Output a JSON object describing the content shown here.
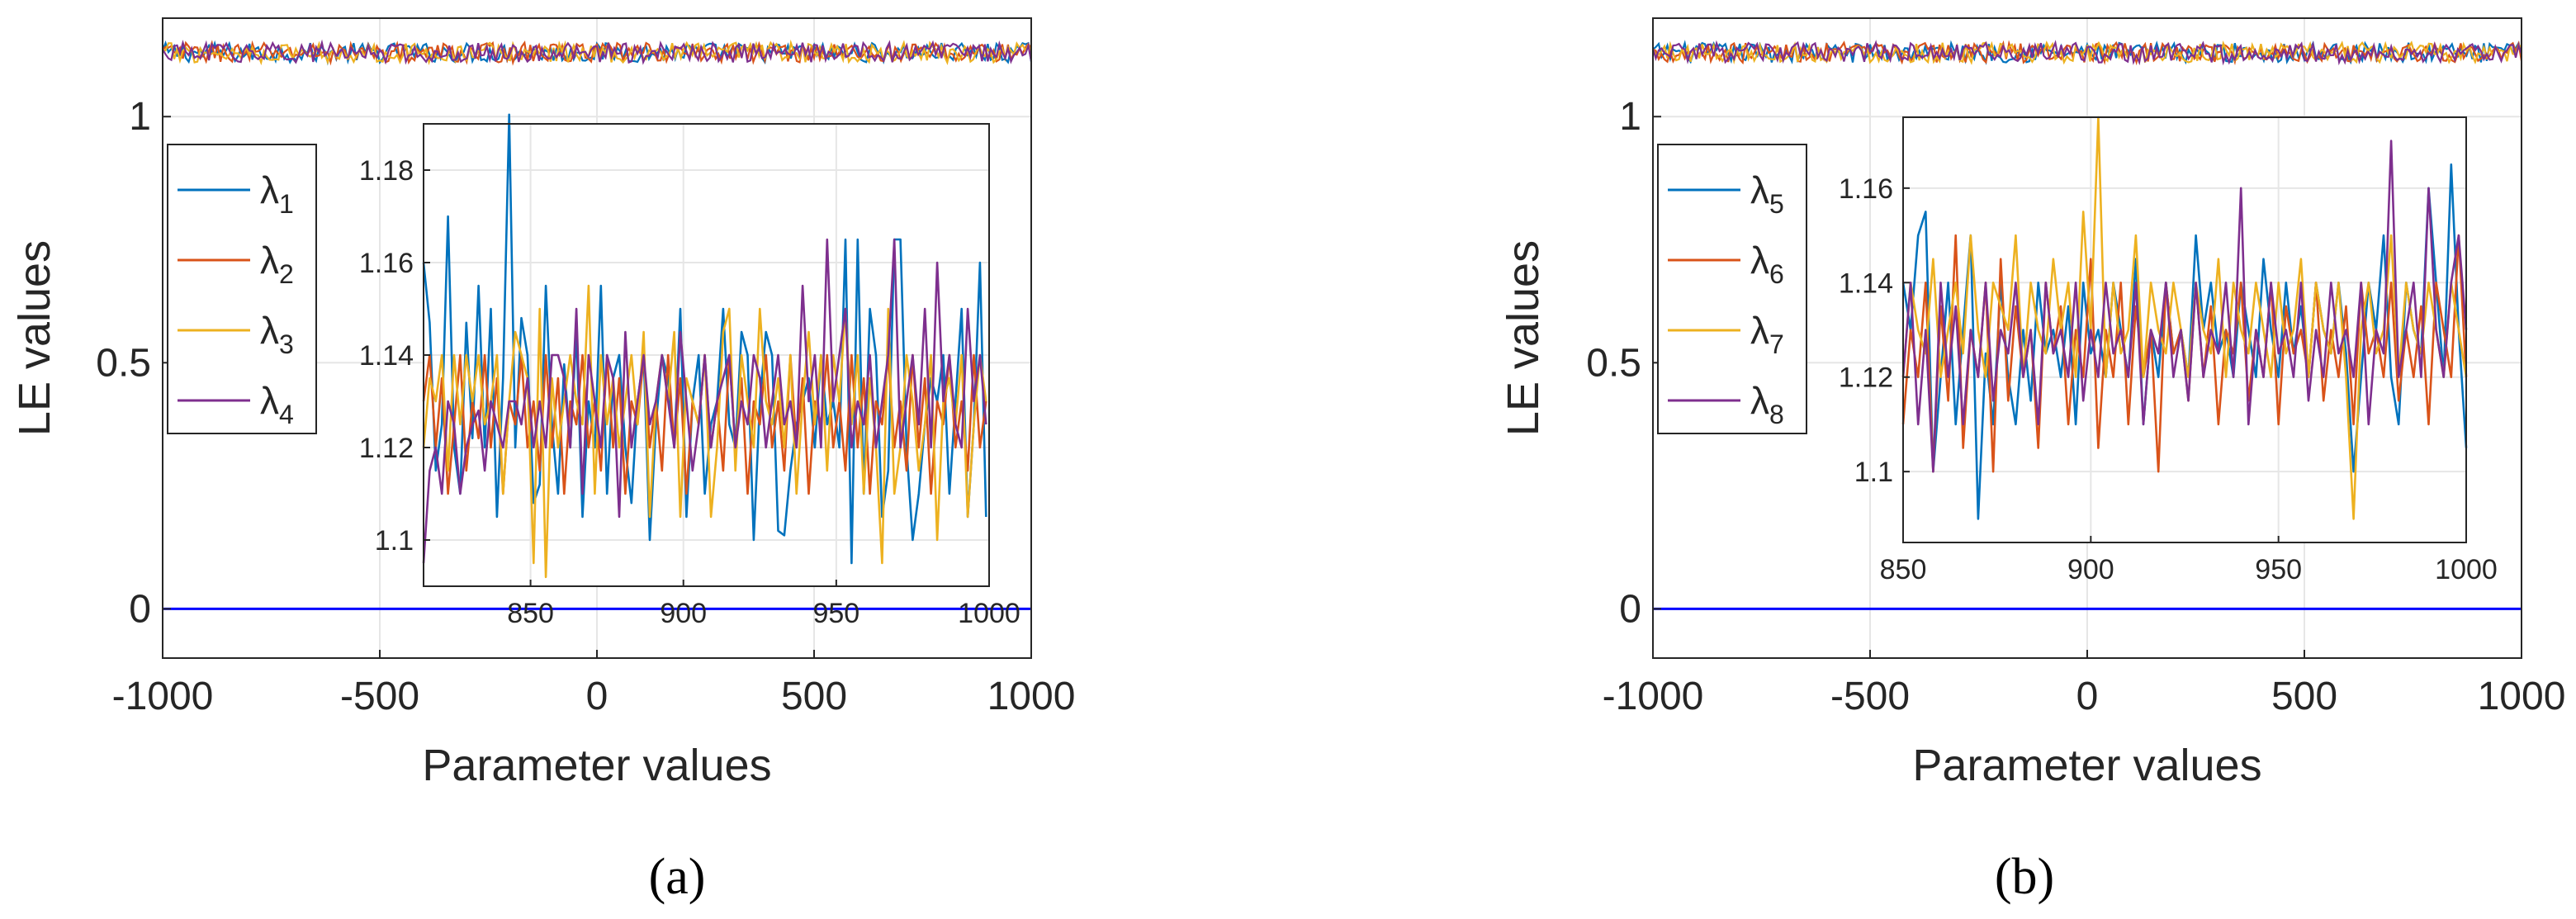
{
  "figure": {
    "panels": [
      "(a)",
      "(b)"
    ]
  },
  "colors": {
    "s1": "#0072BD",
    "s2": "#D95319",
    "s3": "#EDB120",
    "s4": "#7E2F8E",
    "zero_line": "#0000FF",
    "grid": "#e6e6e6",
    "axis": "#262626"
  },
  "chart_data": [
    {
      "type": "line",
      "panel": "(a)",
      "title": "",
      "xlabel": "Parameter values",
      "ylabel": "LE values",
      "xlim": [
        -1000,
        1000
      ],
      "ylim": [
        -0.1,
        1.2
      ],
      "xticks": [
        -1000,
        -500,
        0,
        500,
        1000
      ],
      "yticks": [
        0,
        0.5,
        1
      ],
      "grid": true,
      "legend_position": "left",
      "series": [
        {
          "name": "λ1",
          "base": "λ",
          "sub": "1",
          "color": "#0072BD",
          "level": 1.13,
          "noise": 0.02
        },
        {
          "name": "λ2",
          "base": "λ",
          "sub": "2",
          "color": "#D95319",
          "level": 1.13,
          "noise": 0.02
        },
        {
          "name": "λ3",
          "base": "λ",
          "sub": "3",
          "color": "#EDB120",
          "level": 1.13,
          "noise": 0.02
        },
        {
          "name": "λ4",
          "base": "λ",
          "sub": "4",
          "color": "#7E2F8E",
          "level": 1.13,
          "noise": 0.02
        }
      ],
      "reference_line": {
        "y": 0,
        "color": "#0000FF"
      },
      "inset": {
        "xlim": [
          815,
          1000
        ],
        "ylim": [
          1.09,
          1.19
        ],
        "xticks": [
          850,
          900,
          950,
          1000
        ],
        "yticks": [
          1.1,
          1.12,
          1.14,
          1.16,
          1.18
        ],
        "x_start": 815,
        "x_step": 2,
        "series": [
          {
            "name": "λ1",
            "color": "#0072BD",
            "values": [
              1.16,
              1.147,
              1.115,
              1.125,
              1.17,
              1.12,
              1.11,
              1.147,
              1.122,
              1.155,
              1.12,
              1.15,
              1.105,
              1.135,
              1.192,
              1.12,
              1.148,
              1.14,
              1.108,
              1.112,
              1.155,
              1.125,
              1.11,
              1.138,
              1.12,
              1.145,
              1.105,
              1.13,
              1.12,
              1.155,
              1.11,
              1.135,
              1.14,
              1.12,
              1.108,
              1.13,
              1.14,
              1.1,
              1.125,
              1.14,
              1.135,
              1.12,
              1.15,
              1.105,
              1.13,
              1.14,
              1.11,
              1.125,
              1.13,
              1.15,
              1.125,
              1.12,
              1.145,
              1.14,
              1.1,
              1.13,
              1.145,
              1.14,
              1.102,
              1.101,
              1.115,
              1.125,
              1.13,
              1.135,
              1.12,
              1.14,
              1.125,
              1.13,
              1.12,
              1.165,
              1.095,
              1.165,
              1.11,
              1.15,
              1.14,
              1.105,
              1.115,
              1.165,
              1.165,
              1.12,
              1.1,
              1.11,
              1.125,
              1.135,
              1.13,
              1.14,
              1.11,
              1.13,
              1.15,
              1.105,
              1.125,
              1.16,
              1.105
            ]
          },
          {
            "name": "λ2",
            "color": "#D95319",
            "values": [
              1.13,
              1.14,
              1.12,
              1.135,
              1.11,
              1.125,
              1.14,
              1.115,
              1.13,
              1.122,
              1.14,
              1.12,
              1.135,
              1.11,
              1.13,
              1.125,
              1.14,
              1.12,
              1.13,
              1.115,
              1.14,
              1.12,
              1.135,
              1.11,
              1.13,
              1.125,
              1.14,
              1.12,
              1.13,
              1.115,
              1.14,
              1.12,
              1.135,
              1.11,
              1.13,
              1.125,
              1.14,
              1.12,
              1.13,
              1.115,
              1.14,
              1.12,
              1.135,
              1.11,
              1.13,
              1.125,
              1.14,
              1.12,
              1.13,
              1.115,
              1.14,
              1.12,
              1.135,
              1.11,
              1.13,
              1.125,
              1.14,
              1.12,
              1.13,
              1.115,
              1.14,
              1.12,
              1.135,
              1.11,
              1.13,
              1.125,
              1.14,
              1.12,
              1.13,
              1.115,
              1.14,
              1.12,
              1.135,
              1.11,
              1.13,
              1.125,
              1.14,
              1.12,
              1.13,
              1.115,
              1.14,
              1.12,
              1.135,
              1.11,
              1.13,
              1.125,
              1.14,
              1.12,
              1.13,
              1.115,
              1.14,
              1.12,
              1.13
            ]
          },
          {
            "name": "λ3",
            "color": "#EDB120",
            "values": [
              1.12,
              1.135,
              1.13,
              1.14,
              1.115,
              1.14,
              1.125,
              1.14,
              1.13,
              1.14,
              1.125,
              1.13,
              1.14,
              1.11,
              1.13,
              1.145,
              1.14,
              1.135,
              1.095,
              1.15,
              1.092,
              1.135,
              1.12,
              1.13,
              1.14,
              1.13,
              1.125,
              1.155,
              1.11,
              1.14,
              1.125,
              1.135,
              1.12,
              1.13,
              1.14,
              1.125,
              1.145,
              1.105,
              1.13,
              1.14,
              1.13,
              1.145,
              1.105,
              1.135,
              1.13,
              1.125,
              1.14,
              1.105,
              1.12,
              1.145,
              1.15,
              1.115,
              1.14,
              1.13,
              1.12,
              1.15,
              1.13,
              1.125,
              1.135,
              1.12,
              1.14,
              1.11,
              1.13,
              1.145,
              1.125,
              1.14,
              1.115,
              1.14,
              1.13,
              1.15,
              1.125,
              1.14,
              1.11,
              1.135,
              1.12,
              1.095,
              1.15,
              1.11,
              1.12,
              1.14,
              1.13,
              1.115,
              1.125,
              1.14,
              1.1,
              1.13,
              1.135,
              1.125,
              1.14,
              1.105,
              1.125,
              1.14,
              1.13
            ]
          },
          {
            "name": "λ4",
            "color": "#7E2F8E",
            "values": [
              1.095,
              1.115,
              1.12,
              1.11,
              1.13,
              1.125,
              1.11,
              1.12,
              1.125,
              1.128,
              1.115,
              1.13,
              1.125,
              1.12,
              1.13,
              1.13,
              1.125,
              1.135,
              1.12,
              1.13,
              1.12,
              1.14,
              1.14,
              1.135,
              1.12,
              1.15,
              1.11,
              1.14,
              1.13,
              1.12,
              1.14,
              1.135,
              1.105,
              1.145,
              1.12,
              1.13,
              1.14,
              1.125,
              1.13,
              1.14,
              1.13,
              1.12,
              1.145,
              1.13,
              1.115,
              1.125,
              1.14,
              1.12,
              1.13,
              1.135,
              1.14,
              1.12,
              1.13,
              1.125,
              1.14,
              1.135,
              1.12,
              1.13,
              1.14,
              1.125,
              1.13,
              1.12,
              1.155,
              1.13,
              1.14,
              1.12,
              1.165,
              1.13,
              1.14,
              1.15,
              1.12,
              1.13,
              1.125,
              1.14,
              1.12,
              1.13,
              1.14,
              1.165,
              1.12,
              1.13,
              1.14,
              1.125,
              1.15,
              1.12,
              1.16,
              1.13,
              1.14,
              1.125,
              1.12,
              1.15,
              1.13,
              1.14,
              1.125
            ]
          }
        ]
      }
    },
    {
      "type": "line",
      "panel": "(b)",
      "title": "",
      "xlabel": "Parameter values",
      "ylabel": "LE values",
      "xlim": [
        -1000,
        1000
      ],
      "ylim": [
        -0.1,
        1.2
      ],
      "xticks": [
        -1000,
        -500,
        0,
        500,
        1000
      ],
      "yticks": [
        0,
        0.5,
        1
      ],
      "grid": true,
      "legend_position": "left",
      "series": [
        {
          "name": "λ5",
          "base": "λ",
          "sub": "5",
          "color": "#0072BD",
          "level": 1.13,
          "noise": 0.02
        },
        {
          "name": "λ6",
          "base": "λ",
          "sub": "6",
          "color": "#D95319",
          "level": 1.13,
          "noise": 0.02
        },
        {
          "name": "λ7",
          "base": "λ",
          "sub": "7",
          "color": "#EDB120",
          "level": 1.13,
          "noise": 0.02
        },
        {
          "name": "λ8",
          "base": "λ",
          "sub": "8",
          "color": "#7E2F8E",
          "level": 1.13,
          "noise": 0.02
        }
      ],
      "reference_line": {
        "y": 0,
        "color": "#0000FF"
      },
      "inset": {
        "xlim": [
          850,
          1000
        ],
        "ylim": [
          1.085,
          1.175
        ],
        "xticks": [
          850,
          900,
          950,
          1000
        ],
        "yticks": [
          1.1,
          1.12,
          1.14,
          1.16
        ],
        "x_start": 850,
        "x_step": 2,
        "series": [
          {
            "name": "λ5",
            "color": "#0072BD",
            "values": [
              1.14,
              1.13,
              1.15,
              1.155,
              1.1,
              1.12,
              1.14,
              1.11,
              1.13,
              1.15,
              1.09,
              1.125,
              1.11,
              1.14,
              1.12,
              1.11,
              1.13,
              1.115,
              1.14,
              1.125,
              1.13,
              1.12,
              1.135,
              1.11,
              1.14,
              1.125,
              1.13,
              1.12,
              1.14,
              1.13,
              1.12,
              1.145,
              1.11,
              1.13,
              1.12,
              1.14,
              1.125,
              1.13,
              1.12,
              1.15,
              1.13,
              1.14,
              1.125,
              1.13,
              1.12,
              1.14,
              1.13,
              1.12,
              1.145,
              1.13,
              1.12,
              1.14,
              1.125,
              1.135,
              1.12,
              1.14,
              1.13,
              1.125,
              1.14,
              1.125,
              1.1,
              1.12,
              1.14,
              1.13,
              1.15,
              1.12,
              1.11,
              1.14,
              1.13,
              1.125,
              1.16,
              1.14,
              1.12,
              1.165,
              1.13,
              1.105
            ]
          },
          {
            "name": "λ6",
            "color": "#D95319",
            "values": [
              1.11,
              1.13,
              1.12,
              1.14,
              1.1,
              1.135,
              1.115,
              1.15,
              1.105,
              1.13,
              1.12,
              1.14,
              1.1,
              1.145,
              1.115,
              1.135,
              1.12,
              1.13,
              1.105,
              1.14,
              1.125,
              1.135,
              1.11,
              1.13,
              1.12,
              1.145,
              1.105,
              1.13,
              1.12,
              1.14,
              1.11,
              1.135,
              1.12,
              1.13,
              1.1,
              1.14,
              1.125,
              1.13,
              1.115,
              1.14,
              1.12,
              1.135,
              1.11,
              1.13,
              1.125,
              1.14,
              1.115,
              1.13,
              1.12,
              1.14,
              1.11,
              1.135,
              1.125,
              1.13,
              1.12,
              1.14,
              1.115,
              1.13,
              1.12,
              1.135,
              1.11,
              1.14,
              1.125,
              1.13,
              1.12,
              1.14,
              1.115,
              1.13,
              1.12,
              1.135,
              1.11,
              1.14,
              1.13,
              1.12,
              1.15,
              1.12
            ]
          },
          {
            "name": "λ7",
            "color": "#EDB120",
            "values": [
              1.12,
              1.14,
              1.13,
              1.125,
              1.145,
              1.12,
              1.13,
              1.14,
              1.125,
              1.15,
              1.13,
              1.12,
              1.14,
              1.135,
              1.13,
              1.15,
              1.12,
              1.14,
              1.13,
              1.125,
              1.145,
              1.13,
              1.14,
              1.12,
              1.155,
              1.13,
              1.175,
              1.12,
              1.14,
              1.125,
              1.13,
              1.15,
              1.12,
              1.14,
              1.13,
              1.125,
              1.14,
              1.13,
              1.12,
              1.14,
              1.13,
              1.125,
              1.145,
              1.12,
              1.14,
              1.13,
              1.125,
              1.14,
              1.13,
              1.12,
              1.14,
              1.125,
              1.13,
              1.145,
              1.12,
              1.14,
              1.13,
              1.125,
              1.14,
              1.12,
              1.09,
              1.13,
              1.14,
              1.125,
              1.13,
              1.15,
              1.12,
              1.14,
              1.13,
              1.125,
              1.14,
              1.13,
              1.12,
              1.14,
              1.13,
              1.12
            ]
          },
          {
            "name": "λ8",
            "color": "#7E2F8E",
            "values": [
              1.12,
              1.14,
              1.11,
              1.13,
              1.1,
              1.14,
              1.12,
              1.135,
              1.11,
              1.13,
              1.12,
              1.14,
              1.115,
              1.13,
              1.125,
              1.14,
              1.12,
              1.13,
              1.11,
              1.14,
              1.125,
              1.13,
              1.12,
              1.14,
              1.115,
              1.13,
              1.12,
              1.14,
              1.125,
              1.13,
              1.12,
              1.14,
              1.11,
              1.13,
              1.125,
              1.14,
              1.12,
              1.13,
              1.115,
              1.14,
              1.12,
              1.13,
              1.125,
              1.14,
              1.12,
              1.16,
              1.11,
              1.13,
              1.12,
              1.14,
              1.125,
              1.13,
              1.12,
              1.14,
              1.115,
              1.13,
              1.12,
              1.14,
              1.125,
              1.13,
              1.12,
              1.14,
              1.11,
              1.13,
              1.125,
              1.17,
              1.12,
              1.13,
              1.14,
              1.12,
              1.16,
              1.13,
              1.12,
              1.14,
              1.15,
              1.13
            ]
          }
        ]
      }
    }
  ]
}
